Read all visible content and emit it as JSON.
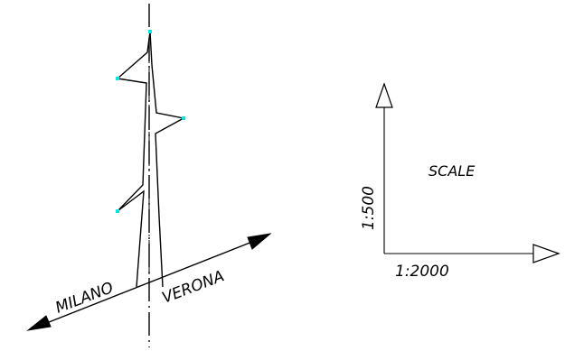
{
  "road": {
    "left_label": "MILANO",
    "right_label": "VERONA"
  },
  "scale": {
    "title": "SCALE",
    "vertical_label": "1:500",
    "horizontal_label": "1:2000"
  },
  "colors": {
    "line": "#000000",
    "grip_point": "#00e5e5",
    "background": "#ffffff"
  }
}
